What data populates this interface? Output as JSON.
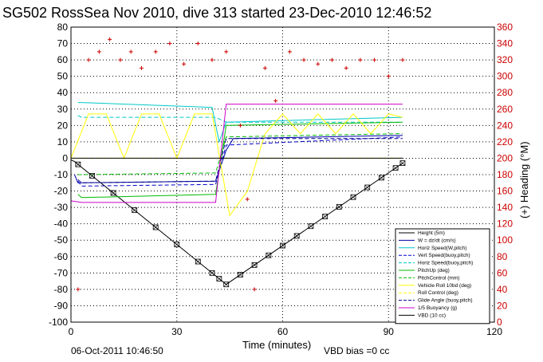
{
  "chart_data": {
    "type": "line",
    "title": "SG502 RossSea Nov 2010, dive 313 started 23-Dec-2010 12:46:52",
    "xlabel": "Time (minutes)",
    "ylabel_right": "(+) Heading (°M)",
    "xlim": [
      0,
      120
    ],
    "ylim": [
      -100,
      80
    ],
    "ylim_right": [
      0,
      360
    ],
    "x_ticks": [
      "0",
      "30",
      "60",
      "90",
      "120"
    ],
    "y_ticks": [
      "80",
      "70",
      "60",
      "50",
      "40",
      "30",
      "20",
      "10",
      "0",
      "-10",
      "-20",
      "-30",
      "-40",
      "-50",
      "-60",
      "-70",
      "-80",
      "-90",
      "-100"
    ],
    "y_ticks_right": [
      "360",
      "340",
      "320",
      "300",
      "280",
      "260",
      "240",
      "220",
      "200",
      "180",
      "160",
      "140",
      "120",
      "100",
      "80",
      "60",
      "40",
      "20",
      "0"
    ],
    "grid": true,
    "legend_position": "bottom-right",
    "footer_left": "06-Oct-2011 10:46:50",
    "footer_right": "VBD bias =0 cc",
    "series": [
      {
        "name": "Height (5m)",
        "color": "#000000",
        "style": "solid",
        "x": [
          0,
          1,
          44,
          94
        ],
        "y": [
          -1,
          -2,
          -77,
          -3
        ]
      },
      {
        "name": "W = dz/dt (cm/s)",
        "color": "#0000aa",
        "style": "solid",
        "x": [
          1,
          2,
          41,
          44,
          46,
          94
        ],
        "y": [
          -10,
          -15,
          -14,
          5,
          12,
          14
        ]
      },
      {
        "name": "Horiz Speed(W,pitch)",
        "color": "#00c8c8",
        "style": "solid",
        "x": [
          2,
          3,
          40,
          42,
          44,
          94
        ],
        "y": [
          34,
          34,
          31,
          10,
          22,
          25
        ]
      },
      {
        "name": "Vert Speed(buoy,pitch)",
        "color": "#0000cc",
        "style": "dashed",
        "x": [
          2,
          3,
          41,
          44,
          94
        ],
        "y": [
          -14,
          -17,
          -16,
          8,
          13
        ]
      },
      {
        "name": "Horiz Speed(buoy,pitch)",
        "color": "#00c8c8",
        "style": "dashed",
        "x": [
          2,
          3,
          41,
          44,
          94
        ],
        "y": [
          26,
          25,
          25,
          22,
          22
        ]
      },
      {
        "name": "PitchUp (deg)",
        "color": "#00bb00",
        "style": "solid",
        "x": [
          2,
          3,
          41,
          44,
          94
        ],
        "y": [
          -22,
          -24,
          -22,
          20,
          22
        ]
      },
      {
        "name": "PitchControl (mm)",
        "color": "#00bb00",
        "style": "dashed",
        "x": [
          2,
          3,
          41,
          44,
          94
        ],
        "y": [
          -10,
          -10,
          -9,
          13,
          15
        ]
      },
      {
        "name": "Vehicle Roll 10bd (deg)",
        "color": "#ffff00",
        "style": "solid",
        "x": [
          0,
          5,
          10,
          15,
          20,
          25,
          30,
          35,
          40,
          45,
          50,
          55,
          60,
          65,
          70,
          75,
          80,
          85,
          90,
          94
        ],
        "y": [
          0,
          27,
          27,
          0,
          27,
          27,
          0,
          27,
          27,
          -35,
          -20,
          15,
          27,
          15,
          27,
          15,
          27,
          15,
          27,
          25
        ]
      },
      {
        "name": "Roll Control (deg)",
        "color": "#ffff00",
        "style": "dashed",
        "x": [
          0,
          94
        ],
        "y": [
          0,
          0
        ]
      },
      {
        "name": "Glide Angle (buoy,pitch)",
        "color": "#000088",
        "style": "dashed",
        "x": [
          2,
          3,
          41,
          44,
          94
        ],
        "y": [
          -13,
          -15,
          -14,
          12,
          12
        ]
      },
      {
        "name": "1/5 Buoyancy (g)",
        "color": "#cc00cc",
        "style": "solid",
        "x": [
          0,
          3,
          41,
          44,
          94
        ],
        "y": [
          -26,
          -27,
          -27,
          33,
          33
        ]
      },
      {
        "name": "VBD (10 cc)",
        "color": "#000000",
        "style": "solid",
        "x": [
          0,
          94
        ],
        "y": [
          0,
          0
        ]
      },
      {
        "name": "Heading",
        "color": "#cc0000",
        "style": "markers",
        "x": [
          2,
          5,
          8,
          11,
          14,
          17,
          20,
          24,
          28,
          32,
          36,
          40,
          44,
          48,
          50,
          52,
          55,
          58,
          62,
          66,
          70,
          74,
          78,
          82,
          86,
          90,
          94
        ],
        "y": [
          40,
          320,
          330,
          345,
          320,
          330,
          310,
          330,
          340,
          315,
          340,
          320,
          330,
          240,
          150,
          40,
          310,
          270,
          330,
          320,
          315,
          320,
          310,
          320,
          320,
          300,
          320
        ]
      }
    ],
    "height_markers_x": [
      2,
      6,
      12,
      18,
      24,
      30,
      36,
      40,
      42,
      44,
      48,
      52,
      56,
      60,
      64,
      68,
      72,
      76,
      80,
      84,
      88,
      92,
      94
    ]
  }
}
